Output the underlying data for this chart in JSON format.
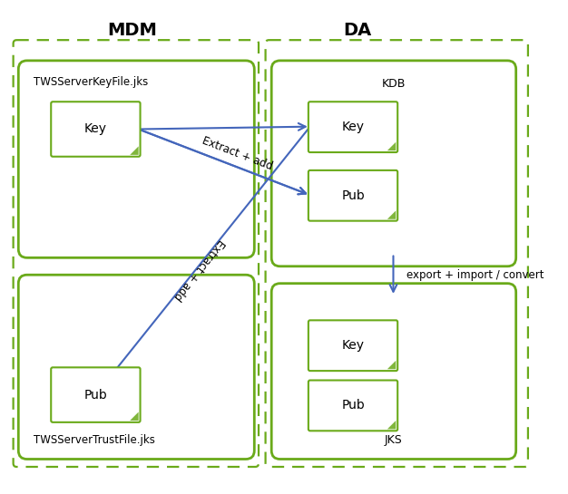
{
  "title_mdm": "MDM",
  "title_da": "DA",
  "label_keyfile": "TWSServerKeyFile.jks",
  "label_trustfile": "TWSServerTrustFile.jks",
  "label_kdb": "KDB",
  "label_jks": "JKS",
  "label_extract_add_1": "Extract + add",
  "label_extract_add_2": "Extract + add",
  "label_export_import": "export + import / convert",
  "green_border": "#6aaa1a",
  "blue_arrow": "#4466bb",
  "bg_color": "#ffffff",
  "fig_w": 6.26,
  "fig_h": 5.45,
  "dpi": 100
}
